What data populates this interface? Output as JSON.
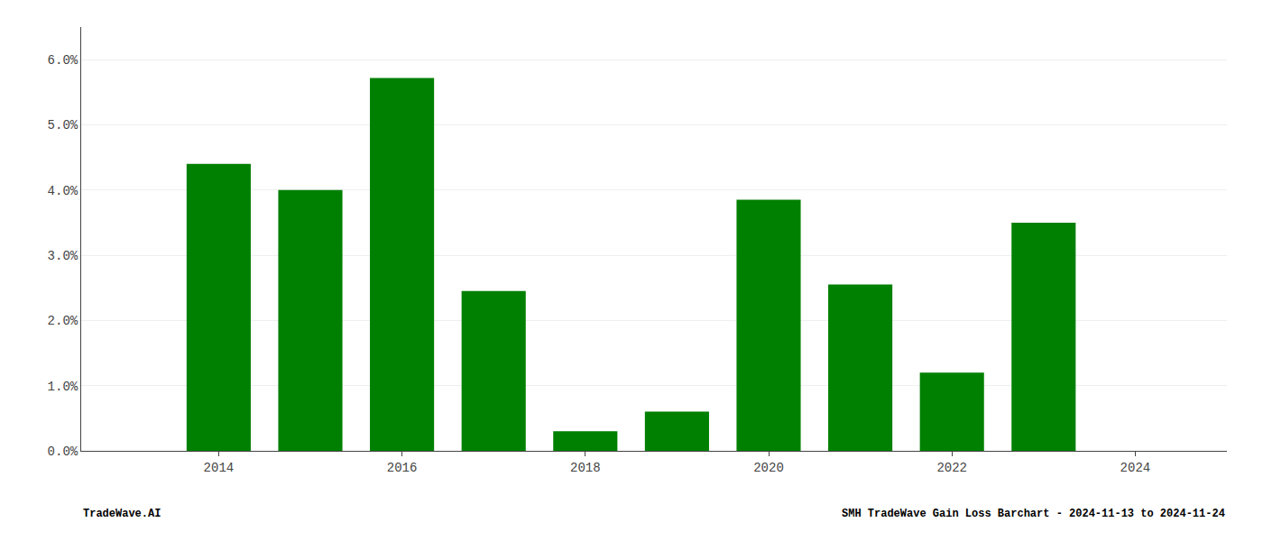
{
  "chart_data": {
    "type": "bar",
    "x": [
      2014,
      2015,
      2016,
      2017,
      2018,
      2019,
      2020,
      2021,
      2022,
      2023,
      2024
    ],
    "values": [
      0.044,
      0.04,
      0.0572,
      0.0245,
      0.003,
      0.006,
      0.0385,
      0.0255,
      0.012,
      0.035,
      0.0
    ],
    "color": "#008000",
    "xlim": [
      2012.5,
      2025.0
    ],
    "xticks": [
      2014,
      2016,
      2018,
      2020,
      2022,
      2024
    ],
    "ylim": [
      0.0,
      0.065
    ],
    "yticks": [
      {
        "value": 0.0,
        "label": "0.0%"
      },
      {
        "value": 0.01,
        "label": "1.0%"
      },
      {
        "value": 0.02,
        "label": "2.0%"
      },
      {
        "value": 0.03,
        "label": "3.0%"
      },
      {
        "value": 0.04,
        "label": "4.0%"
      },
      {
        "value": 0.05,
        "label": "5.0%"
      },
      {
        "value": 0.06,
        "label": "6.0%"
      }
    ],
    "grid": true,
    "annotations": [
      "TradeWave.AI",
      "SMH TradeWave Gain Loss Barchart - 2024-11-13 to 2024-11-24"
    ]
  }
}
